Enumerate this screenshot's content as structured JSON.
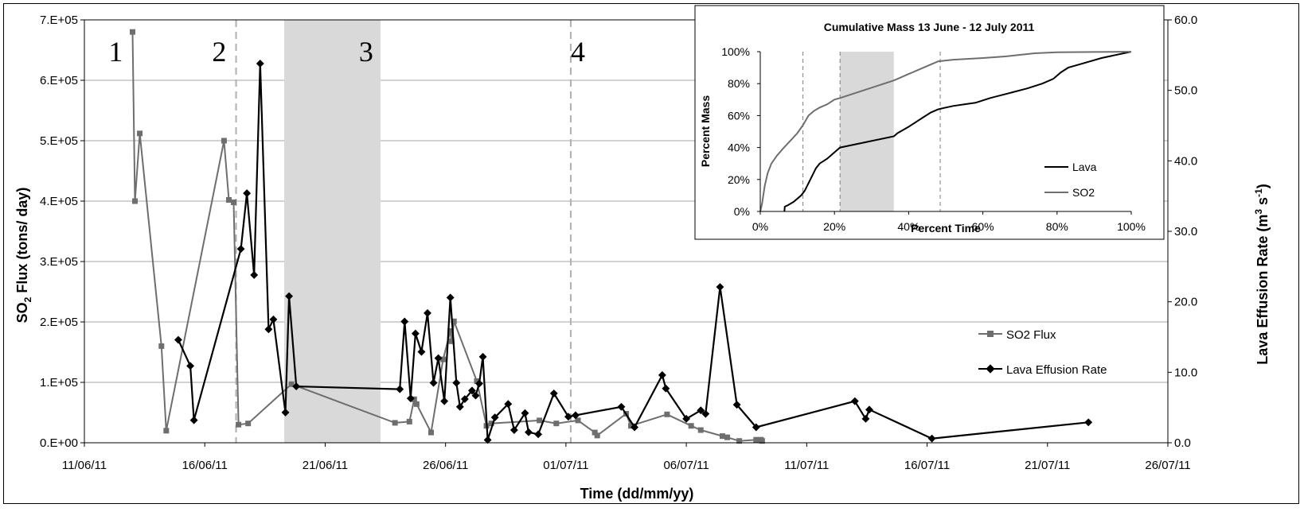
{
  "chart_data": [
    {
      "type": "line",
      "xlabel": "Time (dd/mm/yy)",
      "ylabel": "SO",
      "ylabel_sub": "2",
      "ylabel_rest": " Flux (tons/ day)",
      "y2label": "Lava Effusion Rate (m",
      "y2label_sup1": "3",
      "y2label_mid": " s",
      "y2label_sup2": "-1",
      "y2label_end": ")",
      "x_ticks": [
        "11/06/11",
        "16/06/11",
        "21/06/11",
        "26/06/11",
        "01/07/11",
        "06/07/11",
        "11/07/11",
        "16/07/11",
        "21/07/11",
        "26/07/11"
      ],
      "y_ticks": [
        "0.E+00",
        "1.E+05",
        "2.E+05",
        "3.E+05",
        "4.E+05",
        "5.E+05",
        "6.E+05",
        "7.E+05"
      ],
      "y2_ticks": [
        "0.0",
        "10.0",
        "20.0",
        "30.0",
        "40.0",
        "50.0",
        "60.0"
      ],
      "xlim_days": [
        0,
        45
      ],
      "ylim": [
        0,
        700000
      ],
      "y2lim": [
        0,
        60
      ],
      "phase_labels": [
        "1",
        "2",
        "3",
        "4"
      ],
      "phase_label_days": [
        1.3,
        5.6,
        11.7,
        20.5
      ],
      "phase_dividers_days": [
        6.3,
        20.2
      ],
      "gap_shading_days": [
        8.3,
        12.3
      ],
      "legend": [
        "SO2 Flux",
        "Lava Effusion Rate"
      ],
      "series": [
        {
          "name": "SO2 Flux",
          "axis": "left",
          "color": "#6e6e6e",
          "marker": "square",
          "points": [
            [
              2.0,
              680000
            ],
            [
              2.1,
              400000
            ],
            [
              2.3,
              512000
            ],
            [
              3.2,
              160000
            ],
            [
              3.4,
              20000
            ],
            [
              5.8,
              500000
            ],
            [
              6.0,
              402000
            ],
            [
              6.2,
              398000
            ],
            [
              6.4,
              30000
            ],
            [
              6.8,
              32000
            ],
            [
              8.6,
              97000
            ],
            [
              12.9,
              33000
            ],
            [
              13.5,
              35000
            ],
            [
              13.7,
              72000
            ],
            [
              13.8,
              64000
            ],
            [
              14.4,
              17000
            ],
            [
              14.9,
              138000
            ],
            [
              15.2,
              185000
            ],
            [
              15.25,
              168000
            ],
            [
              15.35,
              201000
            ],
            [
              16.3,
              102000
            ],
            [
              16.7,
              28000
            ],
            [
              16.9,
              32000
            ],
            [
              18.9,
              37000
            ],
            [
              19.6,
              32000
            ],
            [
              20.5,
              37000
            ],
            [
              21.2,
              17000
            ],
            [
              21.3,
              12000
            ],
            [
              22.5,
              48000
            ],
            [
              22.7,
              28000
            ],
            [
              24.2,
              47000
            ],
            [
              25.2,
              28000
            ],
            [
              25.6,
              21000
            ],
            [
              26.5,
              11000
            ],
            [
              26.7,
              9000
            ],
            [
              27.2,
              3000
            ],
            [
              27.9,
              5000
            ],
            [
              28.1,
              5000
            ],
            [
              28.15,
              3000
            ]
          ]
        },
        {
          "name": "Lava Effusion Rate",
          "axis": "right",
          "color": "#000000",
          "marker": "diamond",
          "points": [
            [
              3.9,
              14.6
            ],
            [
              4.4,
              10.9
            ],
            [
              4.55,
              3.2
            ],
            [
              6.5,
              27.5
            ],
            [
              6.75,
              35.4
            ],
            [
              7.05,
              23.8
            ],
            [
              7.3,
              53.8
            ],
            [
              7.65,
              16.1
            ],
            [
              7.85,
              17.5
            ],
            [
              8.35,
              4.3
            ],
            [
              8.5,
              20.8
            ],
            [
              8.8,
              8.0
            ],
            [
              13.1,
              7.6
            ],
            [
              13.3,
              17.2
            ],
            [
              13.55,
              6.3
            ],
            [
              13.75,
              15.5
            ],
            [
              14.0,
              12.9
            ],
            [
              14.25,
              18.4
            ],
            [
              14.5,
              8.5
            ],
            [
              14.7,
              12.0
            ],
            [
              14.95,
              5.9
            ],
            [
              15.2,
              20.6
            ],
            [
              15.45,
              8.5
            ],
            [
              15.6,
              5.1
            ],
            [
              15.8,
              6.2
            ],
            [
              16.1,
              7.4
            ],
            [
              16.25,
              6.7
            ],
            [
              16.4,
              8.4
            ],
            [
              16.55,
              12.2
            ],
            [
              16.75,
              0.4
            ],
            [
              17.05,
              3.6
            ],
            [
              17.6,
              5.5
            ],
            [
              17.85,
              1.8
            ],
            [
              18.3,
              4.2
            ],
            [
              18.45,
              1.5
            ],
            [
              18.85,
              1.2
            ],
            [
              19.5,
              7.0
            ],
            [
              20.1,
              3.7
            ],
            [
              20.4,
              3.9
            ],
            [
              22.3,
              5.1
            ],
            [
              22.85,
              2.2
            ],
            [
              24.0,
              9.6
            ],
            [
              24.15,
              7.7
            ],
            [
              25.0,
              3.4
            ],
            [
              25.6,
              4.6
            ],
            [
              25.8,
              4.1
            ],
            [
              26.4,
              22.1
            ],
            [
              27.1,
              5.4
            ],
            [
              27.9,
              2.2
            ],
            [
              32.0,
              5.9
            ],
            [
              32.45,
              3.4
            ],
            [
              32.6,
              4.7
            ],
            [
              35.2,
              0.6
            ],
            [
              41.7,
              2.9
            ]
          ]
        }
      ]
    },
    {
      "type": "line",
      "title": "Cumulative Mass 13 June - 12 July 2011",
      "xlabel": "Percent Time",
      "ylabel": "Percent Mass",
      "x_ticks": [
        "0%",
        "20%",
        "40%",
        "60%",
        "80%",
        "100%"
      ],
      "y_ticks": [
        "0%",
        "20%",
        "40%",
        "60%",
        "80%",
        "100%"
      ],
      "xlim": [
        0,
        100
      ],
      "ylim": [
        0,
        100
      ],
      "phase_dividers": [
        11.5,
        21.5,
        48.5
      ],
      "gap_shading": [
        21.5,
        36.0
      ],
      "legend": [
        "Lava",
        "SO2"
      ],
      "series": [
        {
          "name": "Lava",
          "color": "#000000",
          "points": [
            [
              6.5,
              0
            ],
            [
              6.6,
              3
            ],
            [
              7.5,
              4
            ],
            [
              9,
              6
            ],
            [
              11,
              10
            ],
            [
              12,
              13
            ],
            [
              13.5,
              20
            ],
            [
              15,
              27
            ],
            [
              16,
              30
            ],
            [
              18,
              33
            ],
            [
              19,
              35
            ],
            [
              20.5,
              38
            ],
            [
              21.5,
              40
            ],
            [
              36,
              47
            ],
            [
              37,
              49
            ],
            [
              40,
              53
            ],
            [
              42,
              56
            ],
            [
              44,
              59
            ],
            [
              46,
              62
            ],
            [
              48,
              64
            ],
            [
              50,
              65
            ],
            [
              52,
              66
            ],
            [
              55,
              67
            ],
            [
              58,
              68
            ],
            [
              62,
              71
            ],
            [
              67,
              74
            ],
            [
              72,
              77
            ],
            [
              76,
              80
            ],
            [
              79,
              83
            ],
            [
              81,
              87
            ],
            [
              83,
              90
            ],
            [
              86,
              92
            ],
            [
              92,
              96
            ],
            [
              100,
              100
            ]
          ]
        },
        {
          "name": "SO2",
          "color": "#6e6e6e",
          "points": [
            [
              0,
              0
            ],
            [
              0.5,
              5
            ],
            [
              1.2,
              16
            ],
            [
              2,
              24
            ],
            [
              3,
              30
            ],
            [
              4.5,
              35
            ],
            [
              6,
              39
            ],
            [
              8,
              44
            ],
            [
              10,
              49
            ],
            [
              11.5,
              54
            ],
            [
              13,
              60
            ],
            [
              14.5,
              63
            ],
            [
              16,
              65
            ],
            [
              18,
              67
            ],
            [
              20,
              70
            ],
            [
              21.5,
              71
            ],
            [
              36,
              82
            ],
            [
              38,
              84
            ],
            [
              40,
              86
            ],
            [
              43,
              89
            ],
            [
              46,
              92
            ],
            [
              48,
              94
            ],
            [
              52,
              95
            ],
            [
              60,
              96
            ],
            [
              66,
              97
            ],
            [
              70,
              98
            ],
            [
              74,
              99
            ],
            [
              80,
              99.6
            ],
            [
              90,
              99.8
            ],
            [
              100,
              100
            ]
          ]
        }
      ]
    }
  ]
}
